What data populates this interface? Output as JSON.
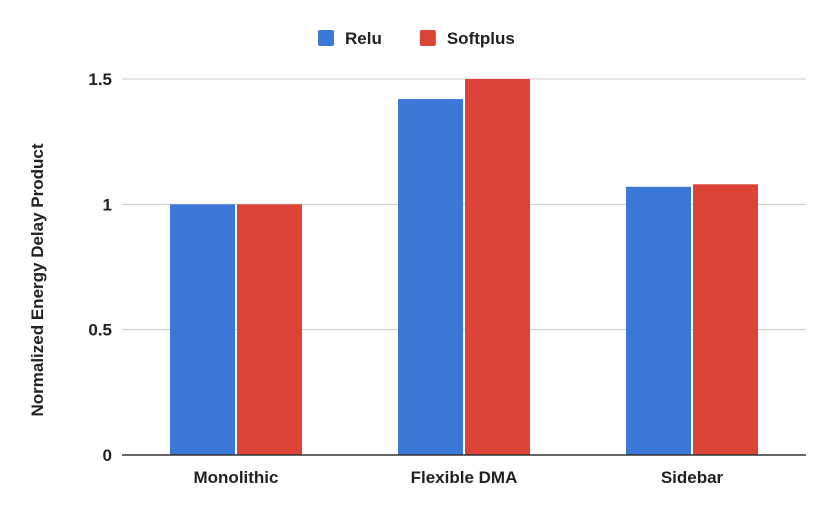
{
  "chart_data": {
    "type": "bar",
    "title": "",
    "xlabel": "",
    "ylabel": "Normalized Energy Delay Product",
    "categories": [
      "Monolithic",
      "Flexible DMA",
      "Sidebar"
    ],
    "series": [
      {
        "name": "Relu",
        "color": "#3c78d8",
        "values": [
          1.0,
          1.42,
          1.07
        ]
      },
      {
        "name": "Softplus",
        "color": "#db4437",
        "values": [
          1.0,
          1.5,
          1.08
        ]
      }
    ],
    "ylim": [
      0,
      1.5
    ],
    "yticks": [
      "0",
      "0.5",
      "1",
      "1.5"
    ],
    "grid": true,
    "legend_position": "top"
  }
}
